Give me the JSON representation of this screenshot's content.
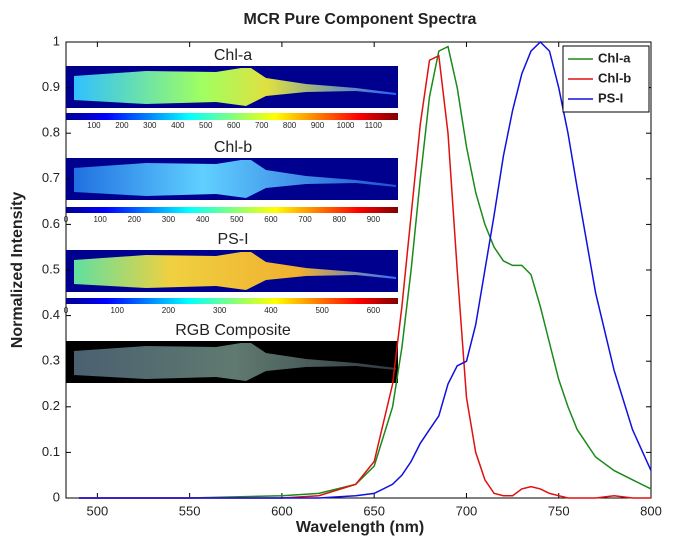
{
  "chart_data": {
    "type": "line",
    "title": "MCR Pure Component Spectra",
    "x_label": "Wavelength (nm)",
    "y_label": "Normalized Intensity",
    "x": [
      490,
      550,
      600,
      620,
      640,
      650,
      660,
      665,
      670,
      675,
      680,
      685,
      690,
      695,
      700,
      705,
      710,
      715,
      720,
      725,
      730,
      735,
      740,
      745,
      750,
      755,
      760,
      770,
      780,
      790,
      800
    ],
    "series": [
      {
        "name": "Chl-a",
        "color": "#1a8a1a",
        "values": [
          0,
          0,
          0.005,
          0.01,
          0.03,
          0.07,
          0.2,
          0.33,
          0.5,
          0.7,
          0.88,
          0.98,
          0.99,
          0.9,
          0.77,
          0.67,
          0.6,
          0.55,
          0.52,
          0.51,
          0.51,
          0.49,
          0.42,
          0.34,
          0.26,
          0.2,
          0.15,
          0.09,
          0.06,
          0.04,
          0.02
        ]
      },
      {
        "name": "Chl-b",
        "color": "#e01010",
        "values": [
          0,
          0,
          0,
          0.005,
          0.03,
          0.08,
          0.25,
          0.42,
          0.62,
          0.82,
          0.96,
          0.97,
          0.8,
          0.5,
          0.22,
          0.1,
          0.04,
          0.01,
          0.005,
          0.005,
          0.02,
          0.025,
          0.02,
          0.01,
          0.005,
          0,
          0,
          0,
          0.005,
          0,
          0
        ]
      },
      {
        "name": "PS-I",
        "color": "#1010e0",
        "values": [
          0,
          0,
          0,
          0,
          0.005,
          0.01,
          0.03,
          0.05,
          0.08,
          0.12,
          0.15,
          0.18,
          0.25,
          0.29,
          0.3,
          0.38,
          0.5,
          0.62,
          0.75,
          0.85,
          0.93,
          0.98,
          1.0,
          0.98,
          0.9,
          0.8,
          0.68,
          0.45,
          0.28,
          0.15,
          0.06
        ]
      }
    ],
    "xlim": [
      483,
      800
    ],
    "ylim": [
      0,
      1
    ],
    "xticks": [
      500,
      550,
      600,
      650,
      700,
      750,
      800
    ],
    "yticks": [
      0,
      0.1,
      0.2,
      0.3,
      0.4,
      0.5,
      0.6,
      0.7,
      0.8,
      0.9,
      1
    ],
    "legend": "upper right",
    "insets": [
      {
        "title": "Chl-a",
        "colorbar_ticks": [
          100,
          200,
          300,
          400,
          500,
          600,
          700,
          800,
          900,
          1000,
          1100
        ]
      },
      {
        "title": "Chl-b",
        "colorbar_ticks": [
          0,
          100,
          200,
          300,
          400,
          500,
          600,
          700,
          800,
          900
        ]
      },
      {
        "title": "PS-I",
        "colorbar_ticks": [
          0,
          100,
          200,
          300,
          400,
          500,
          600
        ]
      },
      {
        "title": "RGB Composite"
      }
    ]
  }
}
